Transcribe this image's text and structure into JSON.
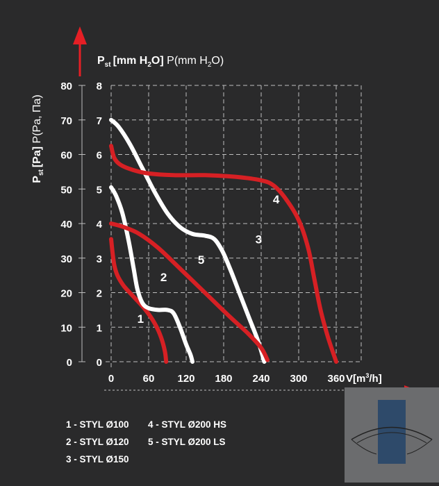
{
  "chart_data": {
    "type": "line",
    "ylabel_left": "P",
    "ylabel_left_sub": "st",
    "ylabel_left_units_bold": "[Pa]",
    "ylabel_left_units": " P(Pa, Па)",
    "ylabel_right": "P",
    "ylabel_right_sub": "st",
    "ylabel_right_units_bold": "[mm H",
    "ylabel_right_units_bold_sub": "2",
    "ylabel_right_units_bold_end": "O]",
    "ylabel_right_units": " P(mm H",
    "ylabel_right_units_sub": "2",
    "ylabel_right_units_end": "O)",
    "xlabel": "V[m",
    "xlabel_sup": "3",
    "xlabel_end": "/h]",
    "xlim": [
      0,
      400
    ],
    "ylim_pa": [
      0,
      80
    ],
    "ylim_mm": [
      0,
      8
    ],
    "x_ticks": [
      "0",
      "60",
      "120",
      "180",
      "240",
      "300",
      "360"
    ],
    "x_tick_values": [
      0,
      60,
      120,
      180,
      240,
      300,
      360
    ],
    "y_ticks_pa": [
      "0",
      "10",
      "20",
      "30",
      "40",
      "50",
      "60",
      "70",
      "80"
    ],
    "y_ticks_mm": [
      "0",
      "1",
      "2",
      "3",
      "4",
      "5",
      "6",
      "7",
      "8"
    ],
    "grid": true,
    "series": [
      {
        "name": "1",
        "color": "#d62024",
        "points": [
          [
            0,
            35.5
          ],
          [
            2,
            32
          ],
          [
            5,
            28
          ],
          [
            10,
            25
          ],
          [
            20,
            22
          ],
          [
            35,
            19
          ],
          [
            55,
            15
          ],
          [
            70,
            11
          ],
          [
            80,
            7
          ],
          [
            86,
            3
          ],
          [
            88,
            0
          ]
        ]
      },
      {
        "name": "2",
        "color": "#ffffff",
        "points": [
          [
            0,
            50.5
          ],
          [
            8,
            48
          ],
          [
            18,
            43
          ],
          [
            28,
            35
          ],
          [
            36,
            27
          ],
          [
            42,
            21
          ],
          [
            50,
            17
          ],
          [
            60,
            15.5
          ],
          [
            75,
            15
          ],
          [
            90,
            15
          ],
          [
            100,
            14
          ],
          [
            110,
            10
          ],
          [
            120,
            5
          ],
          [
            127,
            2
          ],
          [
            130,
            0
          ]
        ]
      },
      {
        "name": "3",
        "color": "#ffffff",
        "points": [
          [
            0,
            70
          ],
          [
            12,
            68
          ],
          [
            30,
            63
          ],
          [
            50,
            56
          ],
          [
            70,
            49
          ],
          [
            90,
            43
          ],
          [
            110,
            39
          ],
          [
            130,
            37
          ],
          [
            150,
            36.5
          ],
          [
            165,
            35.5
          ],
          [
            178,
            32
          ],
          [
            190,
            27
          ],
          [
            205,
            20
          ],
          [
            220,
            13
          ],
          [
            235,
            6
          ],
          [
            245,
            0
          ]
        ]
      },
      {
        "name": "4",
        "color": "#d62024",
        "points": [
          [
            0,
            62.5
          ],
          [
            5,
            59
          ],
          [
            15,
            57
          ],
          [
            35,
            55.5
          ],
          [
            60,
            54.5
          ],
          [
            100,
            54
          ],
          [
            150,
            54
          ],
          [
            200,
            53.5
          ],
          [
            240,
            52.5
          ],
          [
            260,
            51
          ],
          [
            280,
            47
          ],
          [
            300,
            41
          ],
          [
            315,
            33
          ],
          [
            325,
            24
          ],
          [
            335,
            15
          ],
          [
            347,
            7
          ],
          [
            360,
            0
          ]
        ]
      },
      {
        "name": "5",
        "color": "#d62024",
        "points": [
          [
            0,
            40
          ],
          [
            20,
            39
          ],
          [
            45,
            37
          ],
          [
            75,
            33
          ],
          [
            110,
            27
          ],
          [
            150,
            20
          ],
          [
            190,
            13
          ],
          [
            220,
            8
          ],
          [
            240,
            4
          ],
          [
            250,
            0.5
          ]
        ]
      }
    ],
    "series_labels": [
      {
        "text": "1",
        "x": 47,
        "y": 12.5
      },
      {
        "text": "2",
        "x": 84,
        "y": 24.5
      },
      {
        "text": "3",
        "x": 236,
        "y": 35.5
      },
      {
        "text": "4",
        "x": 264,
        "y": 47
      },
      {
        "text": "5",
        "x": 144,
        "y": 29.5
      }
    ]
  },
  "legend": {
    "col1": [
      "1 - STYL Ø100",
      "2 - STYL Ø120",
      "3 - STYL Ø150"
    ],
    "col2": [
      "4 - STYL Ø200 HS",
      "5 - STYL Ø200 LS"
    ]
  },
  "colors": {
    "background": "#2a2a2b",
    "red": "#d62024",
    "white": "#ffffff",
    "grid": "#bfbfbf"
  }
}
